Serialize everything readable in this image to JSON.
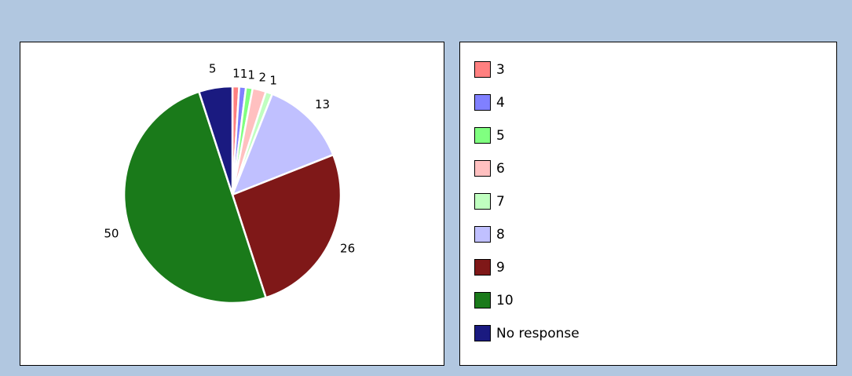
{
  "chart_data": {
    "type": "pie",
    "categories": [
      "3",
      "4",
      "5",
      "6",
      "7",
      "8",
      "9",
      "10",
      "No response"
    ],
    "values": [
      1,
      1,
      1,
      2,
      1,
      13,
      26,
      50,
      5
    ],
    "colors": [
      "#ff8080",
      "#8080ff",
      "#80ff80",
      "#ffc0c0",
      "#c0ffc0",
      "#c0c0ff",
      "#7f1818",
      "#1a7a1a",
      "#1a1a80"
    ],
    "legend": "right"
  }
}
